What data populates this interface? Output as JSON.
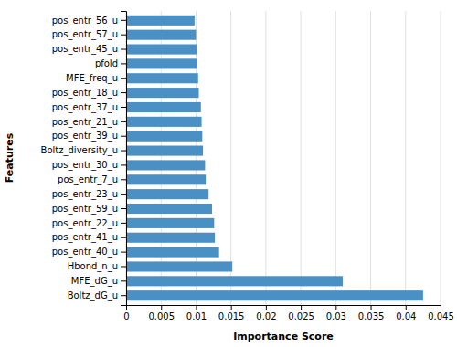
{
  "chart_data": {
    "type": "bar",
    "orientation": "horizontal",
    "categories": [
      "pos_entr_56_u",
      "pos_entr_57_u",
      "pos_entr_45_u",
      "pfold",
      "MFE_freq_u",
      "pos_entr_18_u",
      "pos_entr_37_u",
      "pos_entr_21_u",
      "pos_entr_39_u",
      "Boltz_diversity_u",
      "pos_entr_30_u",
      "pos_entr_7_u",
      "pos_entr_23_u",
      "pos_entr_59_u",
      "pos_entr_22_u",
      "pos_entr_41_u",
      "pos_entr_40_u",
      "Hbond_n_u",
      "MFE_dG_u",
      "Boltz_dG_u"
    ],
    "values": [
      0.0098,
      0.01,
      0.0101,
      0.0102,
      0.0103,
      0.0104,
      0.0107,
      0.0108,
      0.0109,
      0.011,
      0.0113,
      0.0114,
      0.0118,
      0.0123,
      0.0126,
      0.0127,
      0.0133,
      0.0152,
      0.031,
      0.0425
    ],
    "color": "#4A90C4",
    "xlabel": "Importance Score",
    "ylabel": "Features",
    "xlim": [
      0,
      0.045
    ],
    "xticks": [
      0,
      0.005,
      0.01,
      0.015,
      0.02,
      0.025,
      0.03,
      0.035,
      0.04,
      0.045
    ],
    "grid": true
  }
}
